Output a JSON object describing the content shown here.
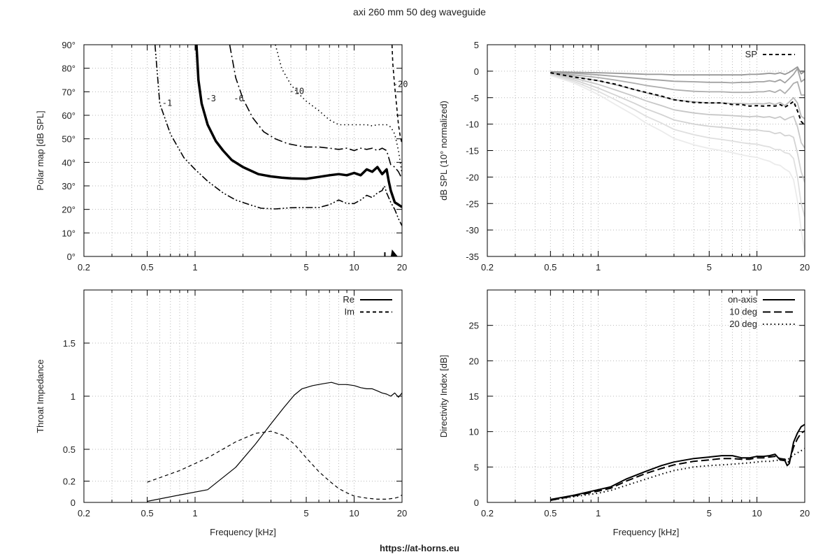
{
  "page": {
    "title": "axi 260 mm 50 deg waveguide",
    "url": "https://at-horns.eu"
  },
  "colors": {
    "axis": "#000000",
    "grid": "#b8b8b8"
  },
  "chart_data": [
    {
      "type": "line",
      "name": "polar_map",
      "ylabel": "Polar map [dB SPL]",
      "xlabel": "",
      "xscale": "log",
      "xlim": [
        0.2,
        20
      ],
      "ylim": [
        0,
        90
      ],
      "xticks": [
        {
          "v": 0.2,
          "label": "0.2"
        },
        {
          "v": 0.5,
          "label": "0.5"
        },
        {
          "v": 1,
          "label": "1"
        },
        {
          "v": 5,
          "label": "5"
        },
        {
          "v": 10,
          "label": "10"
        },
        {
          "v": 20,
          "label": "20"
        }
      ],
      "yticks": [
        {
          "v": 0,
          "label": "0°"
        },
        {
          "v": 10,
          "label": "10°"
        },
        {
          "v": 20,
          "label": "20°"
        },
        {
          "v": 30,
          "label": "30°"
        },
        {
          "v": 40,
          "label": "40°"
        },
        {
          "v": 50,
          "label": "50°"
        },
        {
          "v": 60,
          "label": "60°"
        },
        {
          "v": 70,
          "label": "70°"
        },
        {
          "v": 80,
          "label": "80°"
        },
        {
          "v": 90,
          "label": "90°"
        }
      ],
      "grid": true,
      "annotations": [
        {
          "text": "-1",
          "x": 0.62,
          "y": 64
        },
        {
          "text": "-3",
          "x": 1.17,
          "y": 66
        },
        {
          "text": "-6",
          "x": 1.75,
          "y": 66
        },
        {
          "text": "-10",
          "x": 3.9,
          "y": 69
        },
        {
          "text": "-20",
          "x": 17.5,
          "y": 72
        }
      ],
      "series": [
        {
          "label": "-1",
          "style": "dashdotdot",
          "width": 1.6,
          "x": [
            0.56,
            0.6,
            0.7,
            0.85,
            1.0,
            1.2,
            1.5,
            1.8,
            2.2,
            2.6,
            3.2,
            4.0,
            5.0,
            6.0,
            7.0,
            8.0,
            9.0,
            10.0,
            11.0,
            12.0,
            13.0,
            14.0,
            15.0,
            15.5,
            16.0,
            17.0,
            18.0,
            19.0,
            20.0
          ],
          "y": [
            90,
            65,
            52,
            42,
            37,
            32,
            27,
            24,
            22,
            20.5,
            20.2,
            20.7,
            20.8,
            20.8,
            22,
            24,
            22.5,
            22.5,
            24,
            26,
            25,
            27,
            28,
            30,
            27,
            23,
            20,
            16,
            13
          ]
        },
        {
          "label": "-3",
          "style": "solid",
          "width": 3.5,
          "x": [
            1.02,
            1.05,
            1.1,
            1.2,
            1.35,
            1.5,
            1.7,
            2.0,
            2.5,
            3.0,
            3.5,
            4.0,
            5.0,
            6.0,
            7.0,
            8.0,
            9.0,
            10.0,
            11.0,
            12.0,
            13.0,
            14.0,
            15.0,
            16.0,
            16.5,
            17.0,
            18.0,
            19.0,
            20.0
          ],
          "y": [
            90,
            75,
            65,
            56,
            49,
            45,
            41,
            38,
            35,
            34,
            33.5,
            33.2,
            33,
            33.8,
            34.5,
            35,
            34.5,
            35.5,
            34.5,
            37,
            36,
            38,
            35,
            37,
            32,
            28,
            23,
            22,
            21
          ]
        },
        {
          "label": "-6",
          "style": "dashdot",
          "width": 1.6,
          "x": [
            1.65,
            1.8,
            2.0,
            2.3,
            2.7,
            3.2,
            3.8,
            4.5,
            5.0,
            6.0,
            7.0,
            8.0,
            9.0,
            10.0,
            11.0,
            12.0,
            13.0,
            14.0,
            15.0,
            16.0,
            17.0,
            18.0,
            19.0,
            20.0
          ],
          "y": [
            90,
            76,
            67,
            59,
            53,
            50,
            48,
            47,
            46.5,
            46.5,
            46,
            45.5,
            46,
            45,
            46,
            45.5,
            46,
            45,
            46,
            45,
            39,
            38,
            36,
            33
          ]
        },
        {
          "label": "-10",
          "style": "dotted",
          "width": 1.6,
          "x": [
            3.2,
            3.5,
            4.0,
            4.5,
            5.0,
            6.0,
            7.0,
            8.0,
            9.0,
            10.0,
            11.0,
            12.0,
            13.0,
            14.0,
            15.0,
            16.0,
            17.0,
            18.0,
            19.0,
            20.0
          ],
          "y": [
            90,
            80,
            73,
            69,
            66,
            62,
            58,
            56,
            56,
            56,
            56,
            56,
            55.5,
            56,
            56,
            56,
            55,
            52,
            45,
            35
          ]
        },
        {
          "label": "-20",
          "style": "dashed",
          "width": 1.6,
          "x": [
            17.3,
            17.5,
            18.0,
            18.5,
            19.0,
            19.5,
            20.0
          ],
          "y": [
            90,
            82,
            72,
            64,
            56,
            51,
            48
          ]
        }
      ]
    },
    {
      "type": "line",
      "name": "spl_normalized",
      "ylabel": "dB SPL (10° normalized)",
      "xlabel": "",
      "xscale": "log",
      "xlim": [
        0.2,
        20
      ],
      "ylim": [
        -35,
        5
      ],
      "xticks": [
        {
          "v": 0.2,
          "label": "0.2"
        },
        {
          "v": 0.5,
          "label": "0.5"
        },
        {
          "v": 1,
          "label": "1"
        },
        {
          "v": 5,
          "label": "5"
        },
        {
          "v": 10,
          "label": "10"
        },
        {
          "v": 20,
          "label": "20"
        }
      ],
      "yticks": [
        {
          "v": 5,
          "label": "5"
        },
        {
          "v": 0,
          "label": "0"
        },
        {
          "v": -5,
          "label": "-5"
        },
        {
          "v": -10,
          "label": "-10"
        },
        {
          "v": -15,
          "label": "-15"
        },
        {
          "v": -20,
          "label": "-20"
        },
        {
          "v": -25,
          "label": "-25"
        },
        {
          "v": -30,
          "label": "-30"
        },
        {
          "v": -35,
          "label": "-35"
        }
      ],
      "grid": true,
      "legend": {
        "position": "top-right",
        "entries": [
          {
            "label": "SP",
            "style": "dashed"
          }
        ]
      },
      "x": [
        0.5,
        0.7,
        1.0,
        1.3,
        1.7,
        2.0,
        2.5,
        3.0,
        4.0,
        5.0,
        6.0,
        7.0,
        8.0,
        9.0,
        10.0,
        11.0,
        12.0,
        13.0,
        14.0,
        15.0,
        16.0,
        17.0,
        18.0,
        19.0,
        20.0
      ],
      "series": [
        {
          "label": "SP",
          "style": "dashed",
          "values": [
            -0.3,
            -1.1,
            -1.8,
            -2.5,
            -3.5,
            -4.0,
            -4.7,
            -5.4,
            -5.9,
            -6.0,
            -6.0,
            -6.3,
            -6.3,
            -6.6,
            -6.5,
            -6.6,
            -6.5,
            -6.6,
            -6.3,
            -6.8,
            -6.3,
            -5.7,
            -7.5,
            -9.5,
            -10.2
          ]
        },
        {
          "angle": 20,
          "values": [
            -0.1,
            -0.2,
            -0.3,
            -0.4,
            -0.5,
            -0.6,
            -0.6,
            -0.7,
            -0.7,
            -0.7,
            -0.7,
            -0.7,
            -0.7,
            -0.6,
            -0.6,
            -0.5,
            -0.4,
            -0.5,
            -0.3,
            -0.6,
            -0.2,
            0.3,
            0.8,
            -0.5,
            0.0
          ]
        },
        {
          "angle": 30,
          "values": [
            -0.2,
            -0.4,
            -0.7,
            -1.0,
            -1.3,
            -1.5,
            -1.7,
            -1.9,
            -2.0,
            -2.1,
            -2.1,
            -2.2,
            -2.1,
            -2.1,
            -2.0,
            -2.0,
            -1.8,
            -2.0,
            -1.6,
            -2.2,
            -1.4,
            -0.6,
            0.5,
            -2.0,
            -1.5
          ]
        },
        {
          "angle": 40,
          "values": [
            -0.3,
            -0.7,
            -1.2,
            -1.7,
            -2.3,
            -2.7,
            -3.1,
            -3.5,
            -3.8,
            -3.9,
            -3.9,
            -4.0,
            -4.0,
            -4.0,
            -3.9,
            -3.9,
            -3.7,
            -4.0,
            -3.5,
            -4.2,
            -3.3,
            -2.3,
            -2.0,
            -4.5,
            -4.5
          ]
        },
        {
          "angle": 50,
          "values": [
            -0.4,
            -1.0,
            -1.8,
            -2.6,
            -3.5,
            -4.1,
            -4.8,
            -5.4,
            -5.8,
            -6.0,
            -6.0,
            -6.1,
            -6.1,
            -6.2,
            -6.1,
            -6.2,
            -6.0,
            -6.3,
            -5.9,
            -6.5,
            -5.8,
            -5.0,
            -6.0,
            -8.5,
            -9.0
          ]
        },
        {
          "angle": 60,
          "values": [
            -0.5,
            -1.3,
            -2.5,
            -3.6,
            -4.8,
            -5.6,
            -6.5,
            -7.3,
            -7.9,
            -8.2,
            -8.3,
            -8.4,
            -8.5,
            -8.6,
            -8.5,
            -8.7,
            -8.6,
            -8.9,
            -8.6,
            -9.2,
            -8.8,
            -8.5,
            -10.5,
            -13.5,
            -14.5
          ]
        },
        {
          "angle": 70,
          "values": [
            -0.6,
            -1.6,
            -3.2,
            -4.6,
            -6.1,
            -7.1,
            -8.2,
            -9.2,
            -10.0,
            -10.4,
            -10.6,
            -10.8,
            -11.0,
            -11.1,
            -11.1,
            -11.3,
            -11.4,
            -11.8,
            -11.6,
            -12.2,
            -12.1,
            -12.5,
            -15.5,
            -19.0,
            -21.0
          ]
        },
        {
          "angle": 80,
          "values": [
            -0.7,
            -1.9,
            -3.8,
            -5.5,
            -7.3,
            -8.5,
            -9.8,
            -11.0,
            -12.0,
            -12.6,
            -12.9,
            -13.2,
            -13.5,
            -13.7,
            -13.8,
            -14.1,
            -14.3,
            -14.8,
            -14.8,
            -15.4,
            -15.6,
            -16.5,
            -20.0,
            -25.0,
            -27.5
          ]
        },
        {
          "angle": 90,
          "values": [
            -0.8,
            -2.2,
            -4.4,
            -6.4,
            -8.4,
            -9.8,
            -11.3,
            -12.7,
            -13.9,
            -14.6,
            -15.0,
            -15.4,
            -15.8,
            -16.1,
            -16.3,
            -16.7,
            -17.0,
            -17.6,
            -17.8,
            -18.5,
            -19.0,
            -20.5,
            -24.5,
            -30.0,
            -34.0
          ]
        }
      ]
    },
    {
      "type": "line",
      "name": "throat_impedance",
      "ylabel": "Throat Impedance",
      "xlabel": "Frequency [kHz]",
      "xscale": "log",
      "xlim": [
        0.2,
        20
      ],
      "ylim": [
        0,
        2
      ],
      "xticks": [
        {
          "v": 0.2,
          "label": "0.2"
        },
        {
          "v": 0.5,
          "label": "0.5"
        },
        {
          "v": 1,
          "label": "1"
        },
        {
          "v": 5,
          "label": "5"
        },
        {
          "v": 10,
          "label": "10"
        },
        {
          "v": 20,
          "label": "20"
        }
      ],
      "yticks": [
        {
          "v": 0,
          "label": "0"
        },
        {
          "v": 0.2,
          "label": "0.2"
        },
        {
          "v": 0.5,
          "label": "0.5"
        },
        {
          "v": 1,
          "label": "1"
        },
        {
          "v": 1.5,
          "label": "1.5"
        }
      ],
      "grid": true,
      "legend": {
        "position": "top-right",
        "entries": [
          {
            "label": "Re",
            "style": "solid"
          },
          {
            "label": "Im",
            "style": "dashed"
          }
        ]
      },
      "series": [
        {
          "label": "Re",
          "style": "solid",
          "x": [
            0.5,
            0.8,
            1.2,
            1.8,
            2.4,
            3.0,
            3.6,
            4.2,
            4.7,
            5.5,
            6.5,
            7.2,
            8.0,
            9.0,
            10.0,
            11.0,
            12.0,
            13.0,
            14.0,
            15.0,
            16.0,
            17.0,
            18.0,
            19.0,
            20.0
          ],
          "y": [
            0.01,
            0.07,
            0.12,
            0.33,
            0.55,
            0.74,
            0.89,
            1.01,
            1.07,
            1.1,
            1.12,
            1.13,
            1.11,
            1.11,
            1.1,
            1.08,
            1.07,
            1.07,
            1.05,
            1.03,
            1.02,
            1.0,
            1.03,
            0.99,
            1.03
          ]
        },
        {
          "label": "Im",
          "style": "dashed",
          "x": [
            0.5,
            0.8,
            1.2,
            1.8,
            2.4,
            3.0,
            3.6,
            4.2,
            5.0,
            6.0,
            7.0,
            8.0,
            9.0,
            10.0,
            12.0,
            14.0,
            16.0,
            18.0,
            19.0,
            20.0
          ],
          "y": [
            0.19,
            0.3,
            0.42,
            0.57,
            0.65,
            0.67,
            0.63,
            0.55,
            0.42,
            0.29,
            0.2,
            0.13,
            0.09,
            0.06,
            0.04,
            0.03,
            0.03,
            0.04,
            0.05,
            0.07
          ]
        }
      ]
    },
    {
      "type": "line",
      "name": "directivity_index",
      "ylabel": "Directivity Index [dB]",
      "xlabel": "Frequency [kHz]",
      "xscale": "log",
      "xlim": [
        0.2,
        20
      ],
      "ylim": [
        0,
        30
      ],
      "xticks": [
        {
          "v": 0.2,
          "label": "0.2"
        },
        {
          "v": 0.5,
          "label": "0.5"
        },
        {
          "v": 1,
          "label": "1"
        },
        {
          "v": 5,
          "label": "5"
        },
        {
          "v": 10,
          "label": "10"
        },
        {
          "v": 20,
          "label": "20"
        }
      ],
      "yticks": [
        {
          "v": 0,
          "label": "0"
        },
        {
          "v": 5,
          "label": "5"
        },
        {
          "v": 10,
          "label": "10"
        },
        {
          "v": 15,
          "label": "15"
        },
        {
          "v": 20,
          "label": "20"
        },
        {
          "v": 25,
          "label": "25"
        }
      ],
      "grid": true,
      "legend": {
        "position": "top-right",
        "entries": [
          {
            "label": "on-axis",
            "style": "solid"
          },
          {
            "label": "10 deg",
            "style": "longdash"
          },
          {
            "label": "20 deg",
            "style": "dotted"
          }
        ]
      },
      "x": [
        0.5,
        0.7,
        1.0,
        1.2,
        1.5,
        2.0,
        2.5,
        3.0,
        4.0,
        5.0,
        6.0,
        7.0,
        8.0,
        9.0,
        10.0,
        11.0,
        12.0,
        13.0,
        14.0,
        15.0,
        15.5,
        16.0,
        17.0,
        18.0,
        19.0,
        20.0
      ],
      "series": [
        {
          "label": "on-axis",
          "style": "solid",
          "width": 2,
          "values": [
            0.4,
            1.0,
            1.8,
            2.2,
            3.3,
            4.4,
            5.2,
            5.7,
            6.2,
            6.4,
            6.6,
            6.6,
            6.3,
            6.3,
            6.5,
            6.5,
            6.6,
            6.8,
            6.0,
            5.9,
            5.2,
            5.5,
            8.5,
            9.8,
            10.7,
            11.0
          ]
        },
        {
          "label": "10 deg",
          "style": "longdash",
          "width": 2,
          "values": [
            0.3,
            0.9,
            1.6,
            2.0,
            3.0,
            4.1,
            4.8,
            5.3,
            5.8,
            6.0,
            6.2,
            6.2,
            6.1,
            6.1,
            6.3,
            6.3,
            6.4,
            6.5,
            6.2,
            6.1,
            5.6,
            5.8,
            7.8,
            9.0,
            9.8,
            10.1
          ]
        },
        {
          "label": "20 deg",
          "style": "dotted",
          "width": 2,
          "values": [
            0.3,
            0.8,
            1.3,
            1.7,
            2.4,
            3.3,
            4.0,
            4.5,
            5.0,
            5.2,
            5.3,
            5.4,
            5.5,
            5.6,
            5.7,
            5.8,
            5.8,
            5.9,
            6.0,
            6.1,
            6.1,
            6.2,
            6.7,
            7.0,
            7.3,
            7.6
          ]
        }
      ]
    }
  ]
}
